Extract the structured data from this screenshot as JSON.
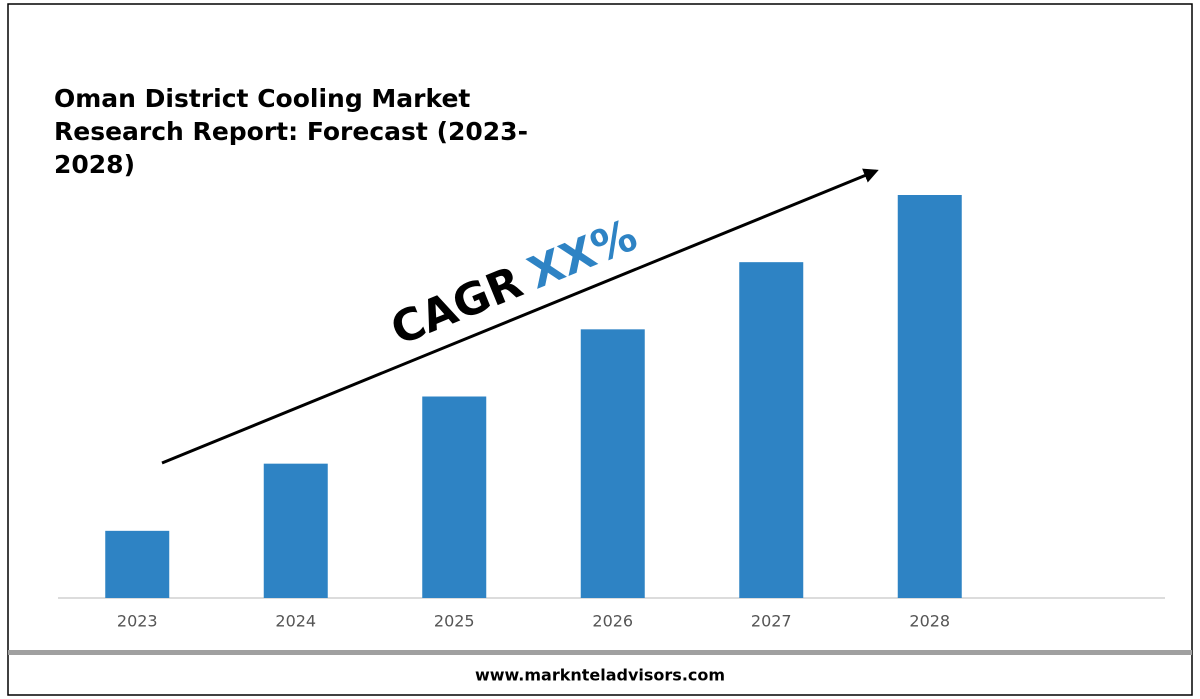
{
  "chart_data": {
    "type": "bar",
    "title": "Oman District Cooling Market Research Report: Forecast (2023-2028)",
    "annotation": "CAGR",
    "annotation_highlight": "XX%",
    "categories": [
      "2023",
      "2024",
      "2025",
      "2026",
      "2027",
      "2028"
    ],
    "values": [
      1,
      2,
      3,
      4,
      5,
      6
    ],
    "color": "#2e83c4",
    "highlight_color": "#2e83c4",
    "ylim": [
      0,
      6
    ],
    "grid": false
  },
  "footer": {
    "text": "www.marknteladvisors.com"
  }
}
